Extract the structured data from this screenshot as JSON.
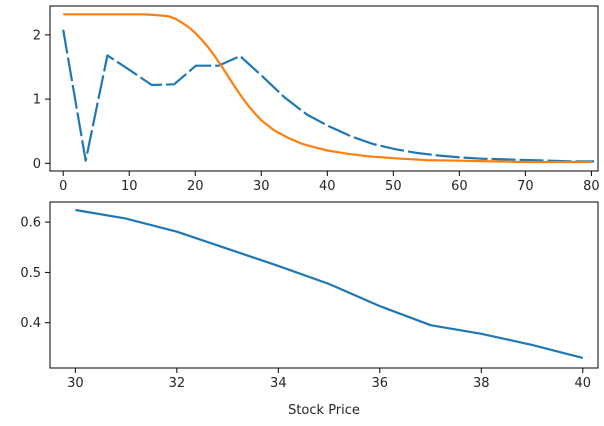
{
  "chart_data": [
    {
      "type": "line",
      "xlabel": "",
      "ylabel": "",
      "xlim": [
        -2,
        81
      ],
      "ylim": [
        -0.12,
        2.45
      ],
      "x_ticks": [
        0,
        10,
        20,
        30,
        40,
        50,
        60,
        70,
        80
      ],
      "x_tick_labels": [
        "0",
        "10",
        "20",
        "30",
        "40",
        "50",
        "60",
        "70",
        "80"
      ],
      "y_ticks": [
        0,
        1,
        2
      ],
      "y_tick_labels": [
        "0",
        "1",
        "2"
      ],
      "grid": false,
      "series": [
        {
          "color": "#1f77b4",
          "dash": "long-dash",
          "x": [
            0,
            3.4,
            6.7,
            10.1,
            13.4,
            16.8,
            20.1,
            23.5,
            26.8,
            30.2,
            33.5,
            36.9,
            40.2,
            43.6,
            46.9,
            50.3,
            53.6,
            57.0,
            60.3,
            63.7,
            67.0,
            70.4,
            73.7,
            77.1,
            80.4
          ],
          "y": [
            2.08,
            0.04,
            1.68,
            1.45,
            1.22,
            1.23,
            1.52,
            1.52,
            1.67,
            1.35,
            1.03,
            0.76,
            0.58,
            0.42,
            0.3,
            0.22,
            0.16,
            0.12,
            0.09,
            0.07,
            0.06,
            0.05,
            0.04,
            0.03,
            0.03
          ]
        },
        {
          "color": "#ff7f0e",
          "dash": "solid",
          "x": [
            0,
            2,
            4,
            6,
            8,
            10,
            12,
            14,
            16,
            17,
            18,
            19,
            20,
            21,
            22,
            23,
            24,
            25,
            26,
            27,
            28,
            29,
            30,
            32,
            34,
            36,
            38,
            40,
            43,
            46,
            50,
            55,
            60,
            65,
            70,
            75,
            80
          ],
          "y": [
            2.32,
            2.32,
            2.32,
            2.32,
            2.32,
            2.32,
            2.32,
            2.31,
            2.29,
            2.25,
            2.19,
            2.12,
            2.03,
            1.92,
            1.8,
            1.66,
            1.51,
            1.35,
            1.19,
            1.04,
            0.9,
            0.78,
            0.67,
            0.51,
            0.4,
            0.31,
            0.25,
            0.2,
            0.15,
            0.11,
            0.08,
            0.05,
            0.04,
            0.03,
            0.02,
            0.02,
            0.02
          ]
        }
      ]
    },
    {
      "type": "line",
      "xlabel": "Stock Price",
      "ylabel": "",
      "xlim": [
        29.5,
        40.3
      ],
      "ylim": [
        0.31,
        0.64
      ],
      "x_ticks": [
        30,
        32,
        34,
        36,
        38,
        40
      ],
      "x_tick_labels": [
        "30",
        "32",
        "34",
        "36",
        "38",
        "40"
      ],
      "y_ticks": [
        0.4,
        0.5,
        0.6
      ],
      "y_tick_labels": [
        "0.4",
        "0.5",
        "0.6"
      ],
      "grid": false,
      "series": [
        {
          "color": "#1f77b4",
          "dash": "solid",
          "x": [
            30,
            31,
            32,
            33,
            34,
            35,
            36,
            37,
            38,
            39,
            40
          ],
          "y": [
            0.624,
            0.607,
            0.581,
            0.547,
            0.513,
            0.477,
            0.433,
            0.395,
            0.378,
            0.356,
            0.33
          ]
        }
      ]
    }
  ]
}
